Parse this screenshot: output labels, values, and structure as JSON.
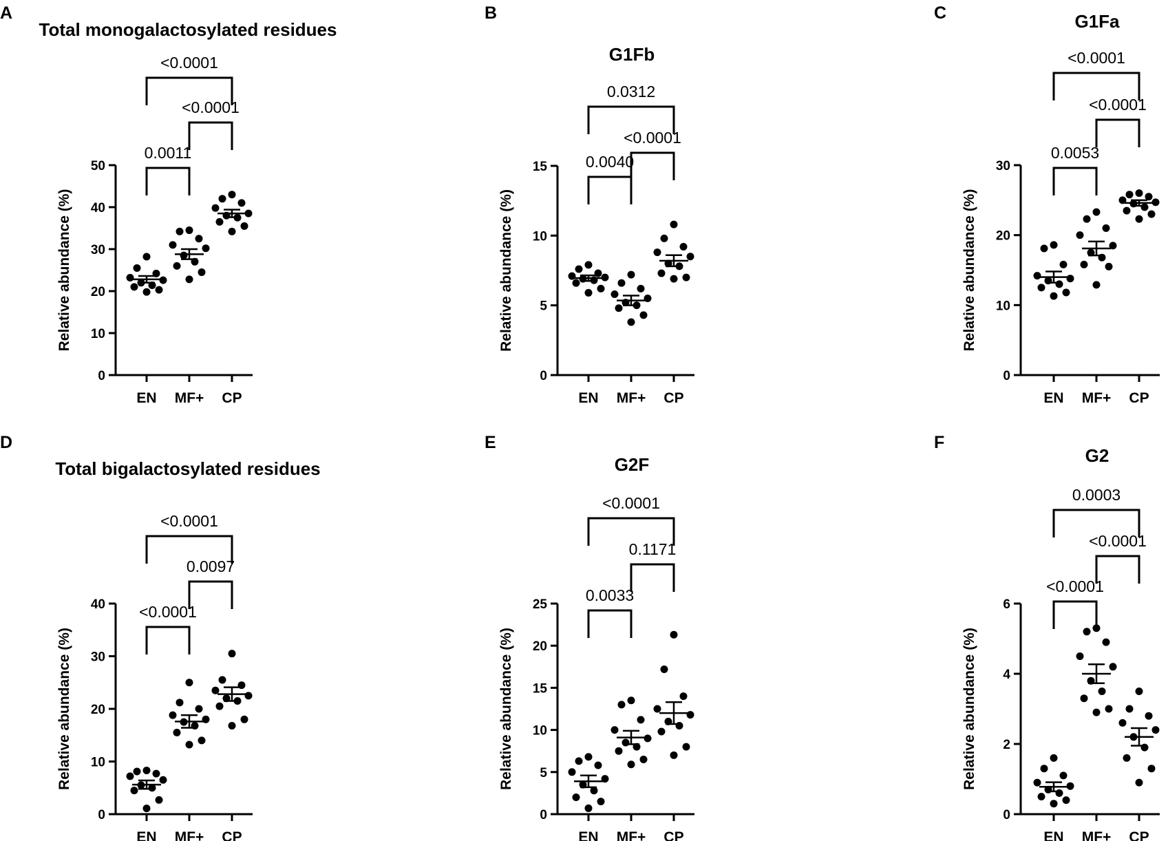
{
  "chart_data": [
    {
      "panel": "A",
      "type": "scatter",
      "title": "Total monogalactosylated residues",
      "ylabel": "Relative abundance (%)",
      "ylim": [
        0,
        50
      ],
      "yticks": [
        0,
        10,
        20,
        30,
        40,
        50
      ],
      "categories": [
        "EN",
        "MF+",
        "CP"
      ],
      "series": [
        {
          "name": "EN",
          "values": [
            28.2,
            25.5,
            24.2,
            23.2,
            22.6,
            22.0,
            21.4,
            21.0,
            20.3,
            19.8
          ],
          "mean": 22.8,
          "sem": 0.8
        },
        {
          "name": "MF+",
          "values": [
            34.5,
            34.2,
            32.5,
            31.0,
            30.2,
            28.5,
            27.0,
            26.0,
            24.5,
            22.8
          ],
          "mean": 28.8,
          "sem": 1.2
        },
        {
          "name": "CP",
          "values": [
            43.0,
            42.0,
            41.0,
            39.8,
            38.5,
            38.0,
            37.5,
            36.5,
            35.5,
            34.2
          ],
          "mean": 38.5,
          "sem": 0.9
        }
      ],
      "comparisons": [
        {
          "from": "EN",
          "to": "MF+",
          "label": "0.0011"
        },
        {
          "from": "MF+",
          "to": "CP",
          "label": "<0.0001"
        },
        {
          "from": "EN",
          "to": "CP",
          "label": "<0.0001"
        }
      ]
    },
    {
      "panel": "B",
      "type": "scatter",
      "title": "G1Fb",
      "ylabel": "Relative abundance (%)",
      "ylim": [
        0,
        15
      ],
      "yticks": [
        0,
        5,
        10,
        15
      ],
      "categories": [
        "EN",
        "MF+",
        "CP"
      ],
      "series": [
        {
          "name": "EN",
          "values": [
            7.9,
            7.6,
            7.3,
            7.1,
            7.0,
            6.9,
            6.8,
            6.6,
            6.2,
            5.9
          ],
          "mean": 6.95,
          "sem": 0.2
        },
        {
          "name": "MF+",
          "values": [
            7.2,
            6.6,
            6.2,
            5.8,
            5.5,
            5.2,
            5.0,
            4.8,
            4.3,
            3.8
          ],
          "mean": 5.35,
          "sem": 0.35
        },
        {
          "name": "CP",
          "values": [
            10.8,
            9.8,
            9.2,
            8.8,
            8.5,
            8.0,
            7.8,
            7.3,
            7.0,
            6.9
          ],
          "mean": 8.2,
          "sem": 0.4
        }
      ],
      "comparisons": [
        {
          "from": "EN",
          "to": "MF+",
          "label": "0.0040"
        },
        {
          "from": "MF+",
          "to": "CP",
          "label": "<0.0001"
        },
        {
          "from": "EN",
          "to": "CP",
          "label": "0.0312"
        }
      ]
    },
    {
      "panel": "C",
      "type": "scatter",
      "title": "G1Fa",
      "ylabel": "Relative abundance (%)",
      "ylim": [
        0,
        30
      ],
      "yticks": [
        0,
        10,
        20,
        30
      ],
      "categories": [
        "EN",
        "MF+",
        "CP"
      ],
      "series": [
        {
          "name": "EN",
          "values": [
            18.6,
            18.1,
            15.8,
            14.2,
            13.8,
            13.5,
            13.0,
            12.5,
            11.8,
            11.3
          ],
          "mean": 14.0,
          "sem": 0.8
        },
        {
          "name": "MF+",
          "values": [
            23.3,
            22.3,
            21.0,
            20.0,
            18.5,
            17.5,
            16.8,
            15.8,
            15.5,
            12.9
          ],
          "mean": 18.1,
          "sem": 1.0
        },
        {
          "name": "CP",
          "values": [
            26.0,
            25.8,
            25.5,
            25.0,
            24.7,
            24.5,
            24.0,
            23.5,
            23.0,
            22.3
          ],
          "mean": 24.6,
          "sem": 0.4
        }
      ],
      "comparisons": [
        {
          "from": "EN",
          "to": "MF+",
          "label": "0.0053"
        },
        {
          "from": "MF+",
          "to": "CP",
          "label": "<0.0001"
        },
        {
          "from": "EN",
          "to": "CP",
          "label": "<0.0001"
        }
      ]
    },
    {
      "panel": "D",
      "type": "scatter",
      "title": "Total bigalactosylated residues",
      "ylabel": "Relative abundance (%)",
      "ylim": [
        0,
        40
      ],
      "yticks": [
        0,
        10,
        20,
        30,
        40
      ],
      "categories": [
        "EN",
        "MF+",
        "CP"
      ],
      "series": [
        {
          "name": "EN",
          "values": [
            8.3,
            8.1,
            7.7,
            7.2,
            6.5,
            5.5,
            5.0,
            4.5,
            2.7,
            1.1
          ],
          "mean": 5.6,
          "sem": 0.8
        },
        {
          "name": "MF+",
          "values": [
            25.0,
            21.2,
            20.0,
            18.8,
            18.0,
            17.5,
            16.8,
            15.5,
            14.0,
            13.2
          ],
          "mean": 17.6,
          "sem": 1.2
        },
        {
          "name": "CP",
          "values": [
            30.5,
            25.5,
            24.5,
            23.5,
            22.5,
            22.0,
            21.5,
            20.5,
            18.0,
            16.8
          ],
          "mean": 22.8,
          "sem": 1.3
        }
      ],
      "comparisons": [
        {
          "from": "EN",
          "to": "MF+",
          "label": "<0.0001"
        },
        {
          "from": "MF+",
          "to": "CP",
          "label": "0.0097"
        },
        {
          "from": "EN",
          "to": "CP",
          "label": "<0.0001"
        }
      ]
    },
    {
      "panel": "E",
      "type": "scatter",
      "title": "G2F",
      "ylabel": "Relative abundance (%)",
      "ylim": [
        0,
        25
      ],
      "yticks": [
        0,
        5,
        10,
        15,
        20,
        25
      ],
      "categories": [
        "EN",
        "MF+",
        "CP"
      ],
      "series": [
        {
          "name": "EN",
          "values": [
            6.8,
            6.3,
            5.8,
            5.0,
            4.2,
            3.5,
            2.8,
            2.0,
            1.5,
            0.7
          ],
          "mean": 3.9,
          "sem": 0.7
        },
        {
          "name": "MF+",
          "values": [
            13.5,
            13.0,
            11.2,
            10.0,
            9.0,
            8.5,
            8.0,
            7.5,
            6.5,
            5.9
          ],
          "mean": 9.1,
          "sem": 0.8
        },
        {
          "name": "CP",
          "values": [
            21.3,
            17.2,
            14.0,
            12.5,
            11.8,
            11.0,
            10.5,
            9.8,
            8.0,
            7.0
          ],
          "mean": 12.0,
          "sem": 1.3
        }
      ],
      "comparisons": [
        {
          "from": "EN",
          "to": "MF+",
          "label": "0.0033"
        },
        {
          "from": "MF+",
          "to": "CP",
          "label": "0.1171"
        },
        {
          "from": "EN",
          "to": "CP",
          "label": "<0.0001"
        }
      ]
    },
    {
      "panel": "F",
      "type": "scatter",
      "title": "G2",
      "ylabel": "Relative abundance (%)",
      "ylim": [
        0,
        6
      ],
      "yticks": [
        0,
        2,
        4,
        6
      ],
      "categories": [
        "EN",
        "MF+",
        "CP"
      ],
      "series": [
        {
          "name": "EN",
          "values": [
            1.6,
            1.3,
            1.1,
            0.9,
            0.8,
            0.7,
            0.6,
            0.5,
            0.4,
            0.3
          ],
          "mean": 0.78,
          "sem": 0.13
        },
        {
          "name": "MF+",
          "values": [
            5.3,
            5.2,
            4.9,
            4.5,
            4.2,
            3.8,
            3.5,
            3.3,
            3.0,
            2.9
          ],
          "mean": 4.0,
          "sem": 0.27
        },
        {
          "name": "CP",
          "values": [
            3.5,
            3.0,
            2.8,
            2.6,
            2.4,
            2.2,
            1.9,
            1.6,
            1.3,
            0.9
          ],
          "mean": 2.2,
          "sem": 0.25
        }
      ],
      "comparisons": [
        {
          "from": "EN",
          "to": "MF+",
          "label": "<0.0001"
        },
        {
          "from": "MF+",
          "to": "CP",
          "label": "<0.0001"
        },
        {
          "from": "EN",
          "to": "CP",
          "label": "0.0003"
        }
      ]
    }
  ]
}
